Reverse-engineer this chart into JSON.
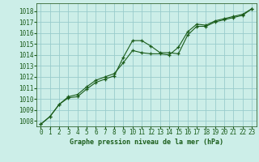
{
  "title": "Graphe pression niveau de la mer (hPa)",
  "background_color": "#cceee8",
  "grid_color": "#99cccc",
  "line_color": "#1a5c1a",
  "marker_color": "#1a5c1a",
  "xlim": [
    -0.5,
    23.5
  ],
  "ylim": [
    1007.5,
    1018.7
  ],
  "xticks": [
    0,
    1,
    2,
    3,
    4,
    5,
    6,
    7,
    8,
    9,
    10,
    11,
    12,
    13,
    14,
    15,
    16,
    17,
    18,
    19,
    20,
    21,
    22,
    23
  ],
  "yticks": [
    1008,
    1009,
    1010,
    1011,
    1012,
    1013,
    1014,
    1015,
    1016,
    1017,
    1018
  ],
  "series1_x": [
    0,
    1,
    2,
    3,
    4,
    5,
    6,
    7,
    8,
    9,
    10,
    11,
    12,
    13,
    14,
    15,
    16,
    17,
    18,
    19,
    20,
    21,
    22,
    23
  ],
  "series1_y": [
    1007.7,
    1008.4,
    1009.5,
    1010.1,
    1010.2,
    1010.9,
    1011.5,
    1011.8,
    1012.1,
    1013.8,
    1015.3,
    1015.3,
    1014.8,
    1014.2,
    1014.2,
    1014.1,
    1015.8,
    1016.6,
    1016.6,
    1017.0,
    1017.2,
    1017.4,
    1017.6,
    1018.2
  ],
  "series2_x": [
    0,
    1,
    2,
    3,
    4,
    5,
    6,
    7,
    8,
    9,
    10,
    11,
    12,
    13,
    14,
    15,
    16,
    17,
    18,
    19,
    20,
    21,
    22,
    23
  ],
  "series2_y": [
    1007.7,
    1008.4,
    1009.5,
    1010.2,
    1010.4,
    1011.1,
    1011.7,
    1012.0,
    1012.3,
    1013.3,
    1014.4,
    1014.2,
    1014.1,
    1014.1,
    1014.0,
    1014.7,
    1016.1,
    1016.8,
    1016.7,
    1017.1,
    1017.3,
    1017.5,
    1017.7,
    1018.2
  ],
  "bottom_label_color": "#1a5c1a",
  "spine_color": "#336633",
  "tick_fontsize": 5.5,
  "label_fontsize": 6.0
}
